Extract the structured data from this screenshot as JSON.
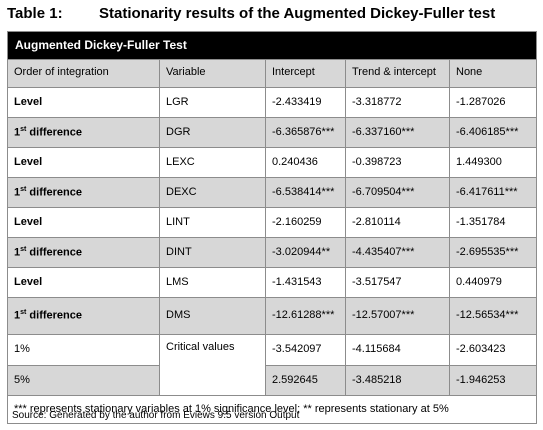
{
  "caption": {
    "number": "Table 1:",
    "title": "Stationarity results of the Augmented Dickey-Fuller test"
  },
  "banner": "Augmented Dickey-Fuller Test",
  "headers": [
    "Order of integration",
    "Variable",
    "Intercept",
    "Trend & intercept",
    "None"
  ],
  "rows": [
    {
      "order": "Level",
      "variable": "LGR",
      "intercept": "-2.433419",
      "trend": "-3.318772",
      "none": "-1.287026"
    },
    {
      "order_base": "1",
      "order_sup": "st",
      "order_rest": " difference",
      "variable": "DGR",
      "intercept": "-6.365876***",
      "trend": "-6.337160***",
      "none": "-6.406185***"
    },
    {
      "order": "Level",
      "variable": "LEXC",
      "intercept": "0.240436",
      "trend": "-0.398723",
      "none": "1.449300"
    },
    {
      "order_base": "1",
      "order_sup": "st",
      "order_rest": " difference",
      "variable": "DEXC",
      "intercept": "-6.538414***",
      "trend": "-6.709504***",
      "none": "-6.417611***"
    },
    {
      "order": "Level",
      "variable": "LINT",
      "intercept": "-2.160259",
      "trend": "-2.810114",
      "none": "-1.351784"
    },
    {
      "order_base": "1",
      "order_sup": "st",
      "order_rest": " difference",
      "variable": "DINT",
      "intercept": "-3.020944**",
      "trend": "-4.435407***",
      "none": "-2.695535***"
    },
    {
      "order": "Level",
      "variable": "LMS",
      "intercept": "-1.431543",
      "trend": "-3.517547",
      "none": "0.440979"
    },
    {
      "order_base": "1",
      "order_sup": "st",
      "order_rest": " difference",
      "variable": "DMS",
      "intercept": "-12.61288***",
      "trend": "-12.57007***",
      "none": "-12.56534***"
    }
  ],
  "critical": {
    "label": "Critical values",
    "one_pct": {
      "level": "1%",
      "intercept": "-3.542097",
      "trend": "-4.115684",
      "none": "-2.603423"
    },
    "five_pct": {
      "level": "5%",
      "intercept": "2.592645",
      "trend": "-3.485218",
      "none": "-1.946253"
    }
  },
  "footnote": "*** represents stationary variables at 1% significance level; ** represents stationary at 5%",
  "source": "Source: Generated by the author from Eviews 9.5 version Output"
}
